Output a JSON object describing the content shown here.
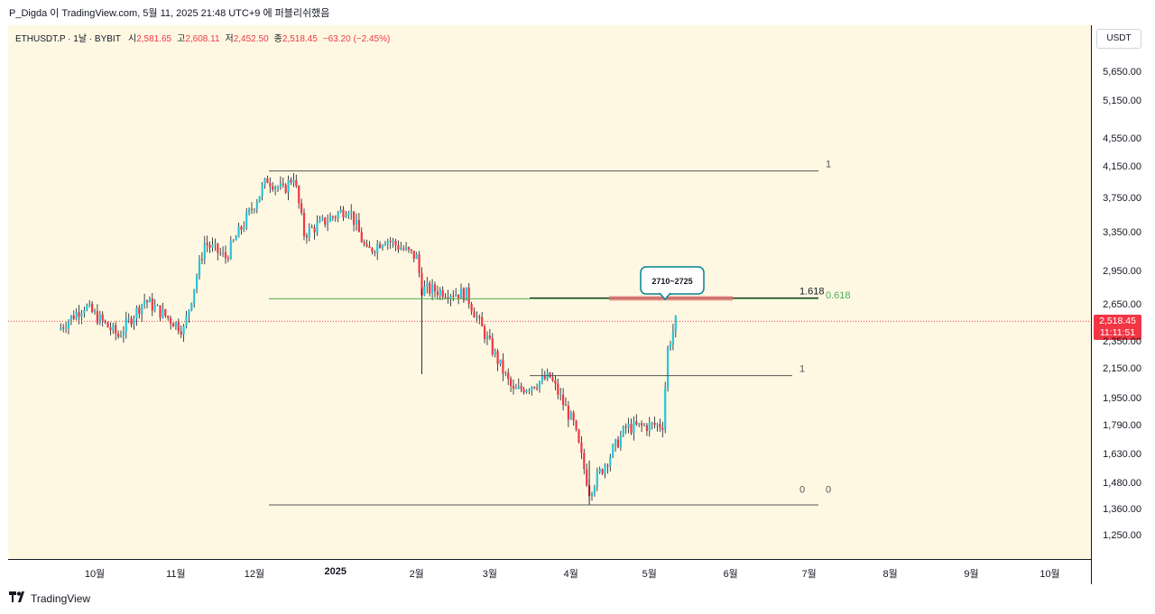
{
  "header": {
    "publish_line": "P_Digda 이 TradingView.com, 5월 11, 2025 21:48 UTC+9 에 퍼블리쉬했음"
  },
  "symbol_bar": {
    "symbol": "ETHUSDT.P · 1날 · BYBIT",
    "open_label": "시",
    "open": "2,581.65",
    "high_label": "고",
    "high": "2,608.11",
    "low_label": "저",
    "low": "2,452.50",
    "close_label": "종",
    "close": "2,518.45",
    "change": "−63.20 (−2.45%)"
  },
  "currency": "USDT",
  "colors": {
    "background": "#fef8e3",
    "up": "#26c6da",
    "down": "#f23645",
    "level_line": "#555555",
    "fib_line": "#4caf50",
    "zone": "#e57373"
  },
  "last_price": {
    "price": "2,518.45",
    "countdown": "11:11:51",
    "value": 2518.45
  },
  "chart_data": {
    "type": "candlestick",
    "scale": "log",
    "x_ticks": [
      "10월",
      "11월",
      "12월",
      "2025",
      "2월",
      "3월",
      "4월",
      "5월",
      "6월",
      "7월",
      "8월",
      "9월",
      "10월"
    ],
    "y_ticks": [
      "5,650.00",
      "5,150.00",
      "4,550.00",
      "4,150.00",
      "3,750.00",
      "3,350.00",
      "2,950.00",
      "2,650.00",
      "2,350.00",
      "2,150.00",
      "1,950.00",
      "1,790.00",
      "1,630.00",
      "1,480.00",
      "1,360.00",
      "1,250.00"
    ],
    "y_tick_values": [
      5650,
      5150,
      4550,
      4150,
      3750,
      3350,
      2950,
      2650,
      2350,
      2150,
      1950,
      1790,
      1630,
      1480,
      1360,
      1250
    ],
    "price_path": [
      [
        "2024-09-17",
        2450
      ],
      [
        "2024-09-27",
        2650
      ],
      [
        "2024-10-10",
        2400
      ],
      [
        "2024-10-20",
        2700
      ],
      [
        "2024-11-04",
        2450
      ],
      [
        "2024-11-12",
        3250
      ],
      [
        "2024-11-20",
        3100
      ],
      [
        "2024-12-06",
        4000
      ],
      [
        "2024-12-12",
        3850
      ],
      [
        "2024-12-16",
        4050
      ],
      [
        "2024-12-20",
        3350
      ],
      [
        "2025-01-06",
        3650
      ],
      [
        "2025-01-13",
        3150
      ],
      [
        "2025-01-20",
        3300
      ],
      [
        "2025-02-01",
        3100
      ],
      [
        "2025-02-03",
        2800
      ],
      [
        "2025-02-20",
        2750
      ],
      [
        "2025-02-25",
        2500
      ],
      [
        "2025-03-10",
        2000
      ],
      [
        "2025-03-24",
        2100
      ],
      [
        "2025-04-02",
        1800
      ],
      [
        "2025-04-08",
        1450
      ],
      [
        "2025-04-22",
        1780
      ],
      [
        "2025-05-06",
        1800
      ],
      [
        "2025-05-08",
        2300
      ],
      [
        "2025-05-11",
        2518
      ]
    ],
    "levels": [
      {
        "label": "1",
        "price": 4107
      },
      {
        "label": "1.618",
        "price": 2710
      },
      {
        "label": "0.618",
        "price": 2710
      },
      {
        "label": "1",
        "price": 2110
      },
      {
        "label": "0",
        "price": 1385
      },
      {
        "label": "0",
        "price": 1385
      }
    ],
    "zone": {
      "label": "2710~2725",
      "low": 2710,
      "high": 2725
    }
  },
  "footer": {
    "brand": "TradingView",
    "logo_icon": "tradingview-logo-icon"
  }
}
